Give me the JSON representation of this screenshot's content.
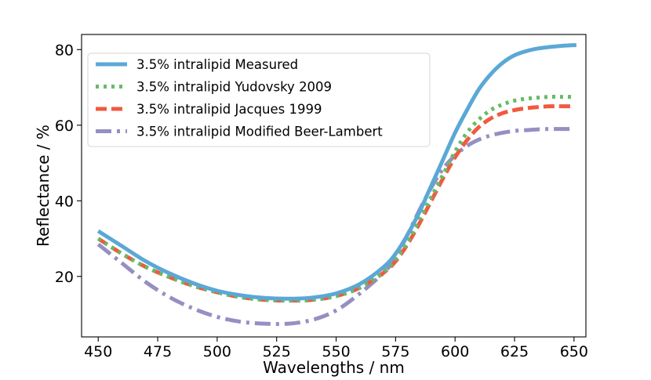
{
  "chart_data": {
    "type": "line",
    "title": "",
    "xlabel": "Wavelengths / nm",
    "ylabel": "Reflectance / %",
    "xlim": [
      443,
      655
    ],
    "ylim": [
      4,
      84
    ],
    "xticks": [
      450,
      475,
      500,
      525,
      550,
      575,
      600,
      625,
      650
    ],
    "yticks": [
      20,
      40,
      60,
      80
    ],
    "grid": false,
    "legend_position": "top-left",
    "series": [
      {
        "name": "3.5% intralipid Measured",
        "color": "#5ba8d6",
        "dash": "solid",
        "x": [
          450,
          460,
          470,
          480,
          490,
          500,
          510,
          520,
          530,
          540,
          550,
          560,
          570,
          575,
          580,
          585,
          590,
          595,
          600,
          605,
          610,
          615,
          620,
          625,
          630,
          635,
          640,
          645,
          651
        ],
        "y": [
          32,
          28,
          24,
          20.8,
          18.2,
          16.2,
          15,
          14.3,
          14.1,
          14.4,
          15.5,
          18,
          22.5,
          26,
          31,
          37,
          44,
          51,
          58,
          64,
          69.5,
          73.5,
          76.5,
          78.5,
          79.6,
          80.3,
          80.7,
          81,
          81.2
        ]
      },
      {
        "name": "3.5% intralipid Yudovsky 2009",
        "color": "#66bb66",
        "dash": "dotted",
        "x": [
          450,
          460,
          470,
          480,
          490,
          500,
          510,
          520,
          530,
          540,
          550,
          560,
          570,
          575,
          580,
          585,
          590,
          595,
          600,
          605,
          610,
          615,
          620,
          625,
          630,
          635,
          640,
          645,
          650
        ],
        "y": [
          30,
          26,
          22.5,
          19.8,
          17.5,
          15.8,
          14.5,
          13.8,
          13.6,
          13.8,
          14.8,
          17,
          21.2,
          24.5,
          29,
          35,
          41,
          47,
          53,
          58,
          61.5,
          64,
          65.5,
          66.5,
          67,
          67.3,
          67.5,
          67.5,
          67.5
        ]
      },
      {
        "name": "3.5% intralipid Jacques 1999",
        "color": "#f05a40",
        "dash": "dashed",
        "x": [
          450,
          460,
          470,
          480,
          490,
          500,
          510,
          520,
          530,
          540,
          550,
          560,
          570,
          575,
          580,
          585,
          590,
          595,
          600,
          605,
          610,
          615,
          620,
          625,
          630,
          635,
          640,
          645,
          650
        ],
        "y": [
          30,
          26,
          22.5,
          19.8,
          17.5,
          15.8,
          14.5,
          13.8,
          13.6,
          13.8,
          14.8,
          17,
          21,
          24,
          28.5,
          34,
          40,
          46,
          51.5,
          56,
          59.5,
          61.8,
          63.2,
          64,
          64.5,
          64.8,
          65,
          65,
          65
        ]
      },
      {
        "name": "3.5% intralipid Modified Beer-Lambert",
        "color": "#9590c2",
        "dash": "dashdot",
        "x": [
          450,
          460,
          470,
          480,
          490,
          500,
          510,
          520,
          530,
          540,
          550,
          560,
          570,
          575,
          580,
          585,
          590,
          595,
          600,
          605,
          610,
          615,
          620,
          625,
          630,
          635,
          640,
          645,
          650
        ],
        "y": [
          28.5,
          23.5,
          18.5,
          14.5,
          11.5,
          9.3,
          8,
          7.5,
          7.5,
          8.5,
          11,
          15.5,
          21,
          25,
          31,
          37.5,
          43.5,
          48.5,
          52,
          54.5,
          56.2,
          57.3,
          58,
          58.5,
          58.7,
          58.9,
          59,
          59,
          59
        ]
      }
    ]
  }
}
